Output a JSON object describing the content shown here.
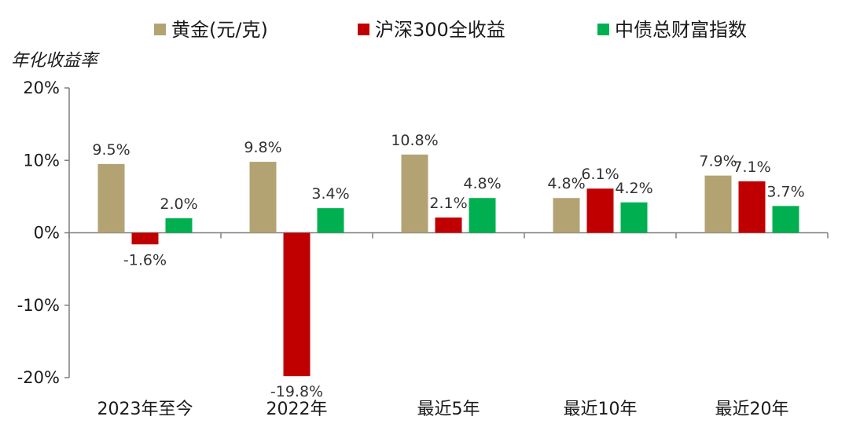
{
  "chart_data": {
    "type": "bar",
    "ylabel": "年化收益率",
    "ylim": [
      -20,
      20
    ],
    "yticks": [
      20,
      10,
      0,
      -10,
      -20
    ],
    "ytick_labels": [
      "20%",
      "10%",
      "0%",
      "-10%",
      "-20%"
    ],
    "categories": [
      "2023年至今",
      "2022年",
      "最近5年",
      "最近10年",
      "最近20年"
    ],
    "series": [
      {
        "name": "黄金(元/克)",
        "color": "#b3a372",
        "values": [
          9.5,
          9.8,
          10.8,
          4.8,
          7.9
        ],
        "labels": [
          "9.5%",
          "9.8%",
          "10.8%",
          "4.8%",
          "7.9%"
        ]
      },
      {
        "name": "沪深300全收益",
        "color": "#c00000",
        "values": [
          -1.6,
          -19.8,
          2.1,
          6.1,
          7.1
        ],
        "labels": [
          "-1.6%",
          "-19.8%",
          "2.1%",
          "6.1%",
          "7.1%"
        ]
      },
      {
        "name": "中债总财富指数",
        "color": "#00b050",
        "values": [
          2.0,
          3.4,
          4.8,
          4.2,
          3.7
        ],
        "labels": [
          "2.0%",
          "3.4%",
          "4.8%",
          "4.2%",
          "3.7%"
        ]
      }
    ],
    "legend_position": "top",
    "grid": false
  }
}
